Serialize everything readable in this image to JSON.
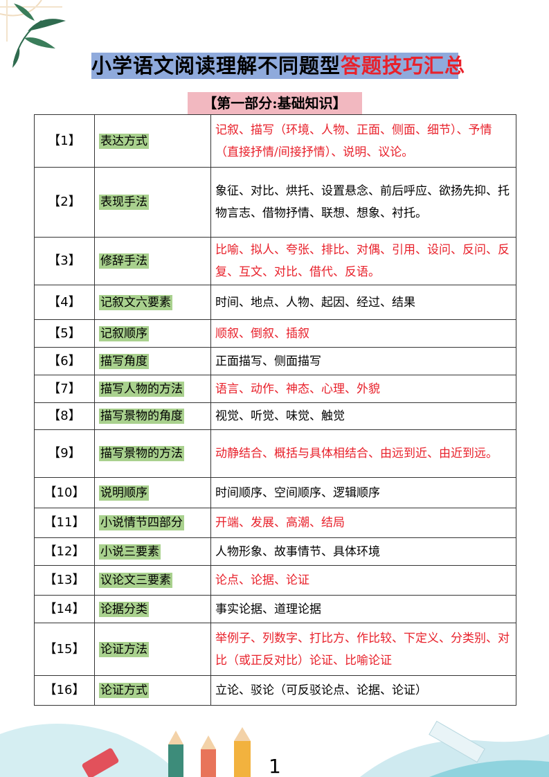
{
  "title": {
    "black": "小学语文阅读理解不同题型",
    "red": "答题技巧汇总"
  },
  "section": "【第一部分:基础知识】",
  "rows": [
    {
      "num": "【1】",
      "label": "表达方式",
      "content": "记叙、描写（环境、人物、正面、侧面、细节）、予情（直接抒情/间接抒情）、说明、议论。",
      "red": true
    },
    {
      "num": "【2】",
      "label": "表现手法",
      "content": "象征、对比、烘托、设置悬念、前后呼应、欲扬先抑、托物言志、借物抒情、联想、想象、衬托。",
      "red": false
    },
    {
      "num": "【3】",
      "label": "修辞手法",
      "content": "比喻、拟人、夸张、排比、对偶、引用、设问、反问、反复、互文、对比、借代、反语。",
      "red": true
    },
    {
      "num": "【4】",
      "label": "记叙文六要素",
      "content": "时间、地点、人物、起因、经过、结果",
      "red": false
    },
    {
      "num": "【5】",
      "label": "记叙顺序",
      "content": "顺叙、倒叙、插叙",
      "red": true
    },
    {
      "num": "【6】",
      "label": "描写角度",
      "content": "正面描写、侧面描写",
      "red": false
    },
    {
      "num": "【7】",
      "label": "描写人物的方法",
      "content": "语言、动作、神态、心理、外貌",
      "red": true
    },
    {
      "num": "【8】",
      "label": "描写景物的角度",
      "content": "视觉、听觉、味觉、触觉",
      "red": false
    },
    {
      "num": "【9】",
      "label": "描写景物的方法",
      "content": "动静结合、概括与具体相结合、由远到近、由近到远。",
      "red": true
    },
    {
      "num": "【10】",
      "label": "说明顺序",
      "content": "时间顺序、空间顺序、逻辑顺序",
      "red": false
    },
    {
      "num": "【11】",
      "label": "小说情节四部分",
      "content": "开端、发展、高潮、结局",
      "red": true
    },
    {
      "num": "【12】",
      "label": "小说三要素",
      "content": "人物形象、故事情节、具体环境",
      "red": false
    },
    {
      "num": "【13】",
      "label": "议论文三要素",
      "content": "论点、论据、论证",
      "red": true
    },
    {
      "num": "【14】",
      "label": "论据分类",
      "content": "事实论据、道理论据",
      "red": false
    },
    {
      "num": "【15】",
      "label": "论证方法",
      "content": "举例子、列数字、打比方、作比较、下定义、分类别、对比（或正反对比）论证、比喻论证",
      "red": true
    },
    {
      "num": "【16】",
      "label": "论证方式",
      "content": "立论、驳论（可反驳论点、论据、论证）",
      "red": false
    }
  ],
  "page_number": "1",
  "colors": {
    "title_bg": "#8faadc",
    "section_bg": "#f2b8c0",
    "label_bg": "#a9d18e",
    "red": "#e8212b"
  }
}
